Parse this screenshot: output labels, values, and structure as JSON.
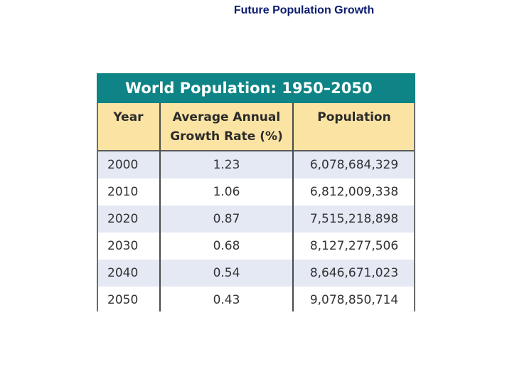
{
  "slide": {
    "title": "Future Population Growth"
  },
  "table": {
    "caption": "World Population: 1950–2050",
    "headers": {
      "year": "Year",
      "rate_line1": "Average Annual",
      "rate_line2": "Growth Rate (%)",
      "population": "Population"
    },
    "rows": [
      {
        "year": "2000",
        "rate": "1.23",
        "population": "6,078,684,329"
      },
      {
        "year": "2010",
        "rate": "1.06",
        "population": "6,812,009,338"
      },
      {
        "year": "2020",
        "rate": "0.87",
        "population": "7,515,218,898"
      },
      {
        "year": "2030",
        "rate": "0.68",
        "population": "8,127,277,506"
      },
      {
        "year": "2040",
        "rate": "0.54",
        "population": "8,646,671,023"
      },
      {
        "year": "2050",
        "rate": "0.43",
        "population": "9,078,850,714"
      }
    ]
  },
  "colors": {
    "banner": "#0e8486",
    "header_fill": "#fbe3a3",
    "shaded_row": "#e4e9f4",
    "title_text": "#0b1c70"
  }
}
